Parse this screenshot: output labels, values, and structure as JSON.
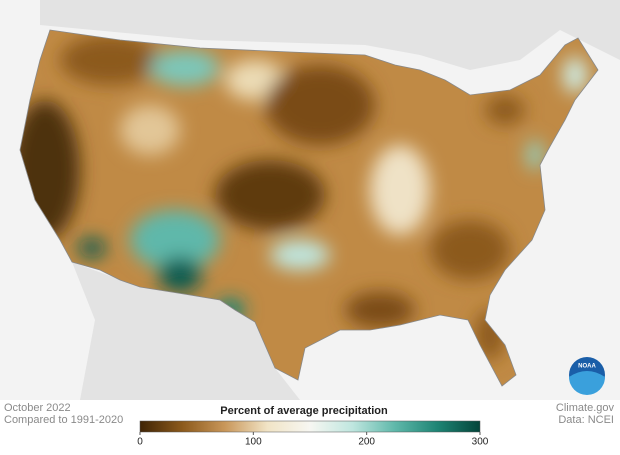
{
  "footer": {
    "date": "October 2022",
    "baseline": "Compared to 1991-2020",
    "source": "Climate.gov",
    "data_credit": "Data: NCEI"
  },
  "legend": {
    "title": "Percent of average precipitation",
    "range": [
      0,
      300
    ],
    "ticks": [
      0,
      100,
      200,
      300
    ],
    "colors": [
      "#3f2405",
      "#8c5a1c",
      "#c9975a",
      "#f1e4c6",
      "#f7f7f2",
      "#bfe6df",
      "#5fb8aa",
      "#1e8474",
      "#04453a"
    ]
  },
  "logo": {
    "label": "NOAA"
  }
}
